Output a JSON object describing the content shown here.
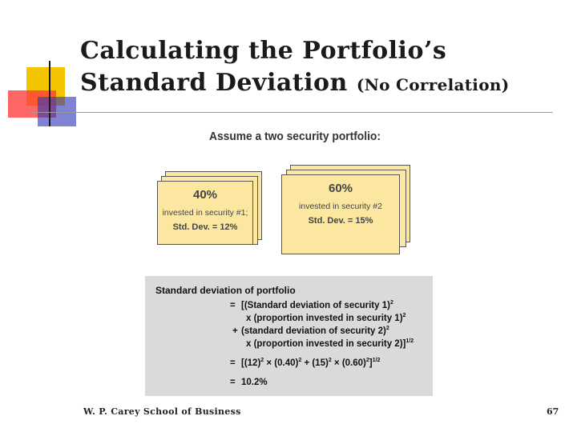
{
  "slide": {
    "title_line1": "Calculating the Portfolio’s",
    "title_line2": "Standard Deviation",
    "title_suffix": "(No Correlation)",
    "assume": "Assume a two security portfolio:",
    "footer_left": "W. P. Carey School of Business",
    "footer_right": "67"
  },
  "cards": [
    {
      "pct": "40%",
      "line1": "invested in security #1;",
      "line2": "Std. Dev. = 12%"
    },
    {
      "pct": "60%",
      "line1": "invested in security #2",
      "line2": "Std. Dev. = 15%"
    }
  ],
  "formula": {
    "heading": "Standard deviation of portfolio",
    "eq1": "=",
    "r1": "[(Standard deviation of security 1)",
    "r2": "x  (proportion invested in security 1)",
    "plus": "+",
    "r3": "(standard deviation of security 2)",
    "r4": "x  (proportion invested in security 2)]",
    "exp_half": "1/2",
    "exp_sq": "2",
    "eq2": "=",
    "calc_a": "[(12)",
    "calc_b": " × (0.40)",
    "calc_c": " + (15)",
    "calc_d": " × (0.60)",
    "calc_e": "]",
    "eq3": "=",
    "result": "10.2%"
  },
  "colors": {
    "card_fill": "#fbe7a0",
    "panel_fill": "#dadada",
    "accent_yellow": "#f4c400",
    "accent_red": "#ff3b3b",
    "accent_blue": "#2f37b8"
  }
}
